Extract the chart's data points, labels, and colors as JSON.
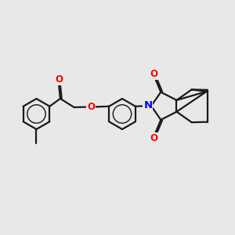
{
  "background_color": "#e8e8e8",
  "bond_color": "#1a1a1a",
  "bond_width": 1.6,
  "atom_colors": {
    "O": "#ff0000",
    "N": "#0000ff"
  },
  "figsize": [
    3.0,
    3.0
  ],
  "dpi": 100
}
